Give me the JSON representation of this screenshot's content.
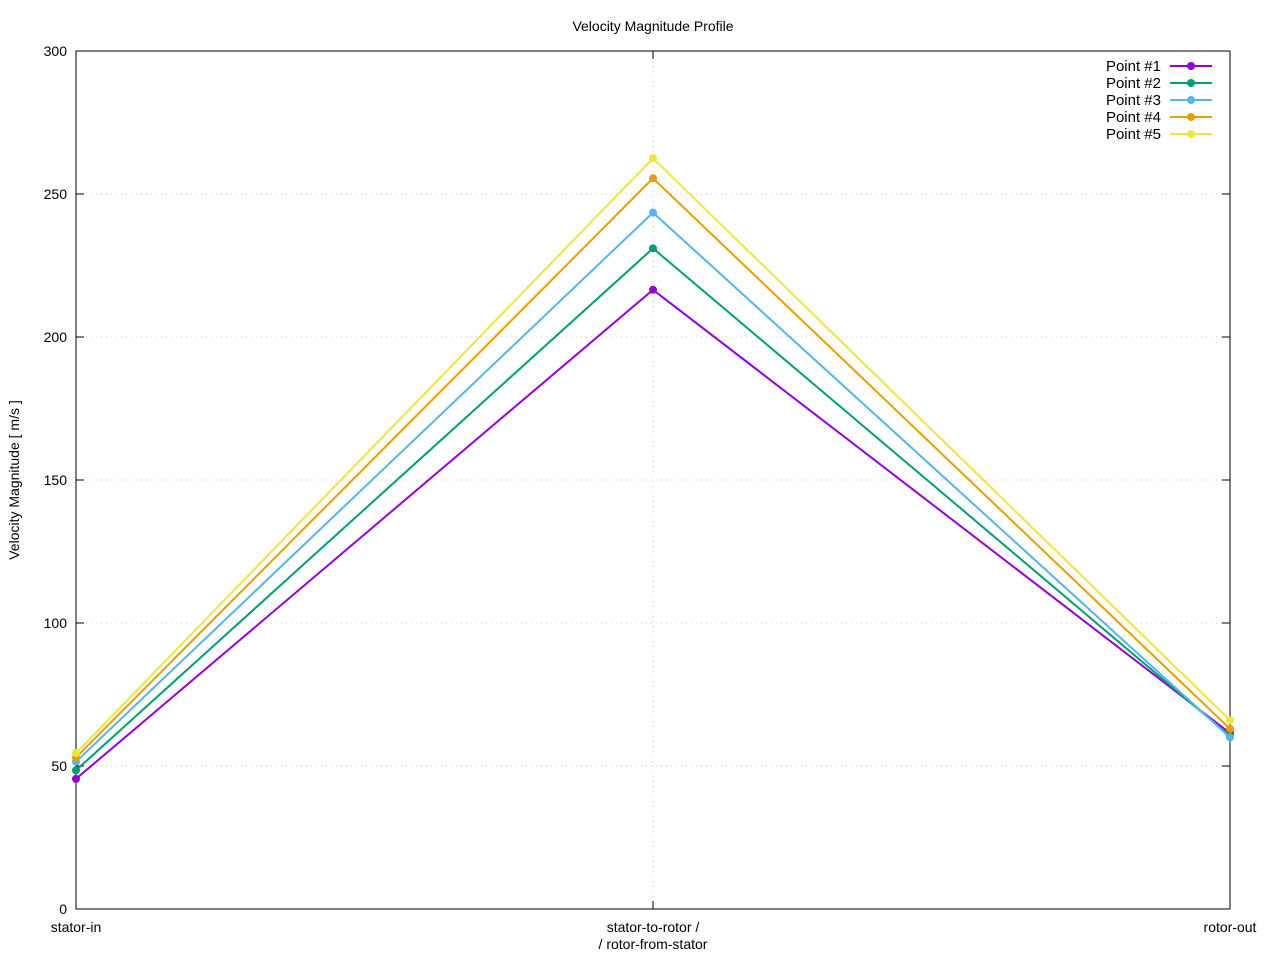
{
  "chart_data": {
    "type": "line",
    "title": "Velocity Magnitude Profile",
    "xlabel": "",
    "ylabel": "Velocity Magnitude [ m/s ]",
    "categories": [
      "stator-in",
      "stator-to-rotor /\n/ rotor-from-stator",
      "rotor-out"
    ],
    "category_lines": [
      [
        "stator-in"
      ],
      [
        "stator-to-rotor /",
        "/ rotor-from-stator"
      ],
      [
        "rotor-out"
      ]
    ],
    "ylim": [
      0,
      300
    ],
    "yticks": [
      0,
      50,
      100,
      150,
      200,
      250,
      300
    ],
    "grid": true,
    "legend_position": "top-right",
    "series": [
      {
        "name": "Point #1",
        "color": "#9400d3",
        "values": [
          45.5,
          216.5,
          61.5
        ]
      },
      {
        "name": "Point #2",
        "color": "#009e73",
        "values": [
          48.5,
          231,
          60.5
        ]
      },
      {
        "name": "Point #3",
        "color": "#56b4e9",
        "values": [
          51.5,
          243.5,
          60
        ]
      },
      {
        "name": "Point #4",
        "color": "#e69f00",
        "values": [
          53,
          255.5,
          63
        ]
      },
      {
        "name": "Point #5",
        "color": "#f0e442",
        "values": [
          54.5,
          262.5,
          66
        ]
      }
    ]
  }
}
